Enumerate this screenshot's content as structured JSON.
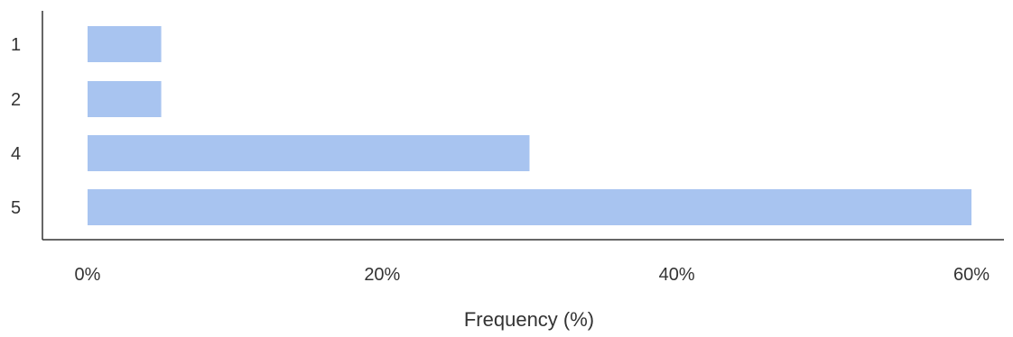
{
  "chart_data": {
    "type": "bar",
    "orientation": "horizontal",
    "categories": [
      "1",
      "2",
      "4",
      "5"
    ],
    "values": [
      5,
      5,
      30,
      60
    ],
    "value_unit": "%",
    "xlabel": "Frequency (%)",
    "ylabel": "",
    "xlim": [
      0,
      60
    ],
    "x_ticks": [
      {
        "value": 0,
        "label": "0%"
      },
      {
        "value": 20,
        "label": "20%"
      },
      {
        "value": 40,
        "label": "40%"
      },
      {
        "value": 60,
        "label": "60%"
      }
    ],
    "grid": false,
    "legend": "none",
    "bar_color": "#a8c4f0",
    "axis_color": "#333333"
  }
}
